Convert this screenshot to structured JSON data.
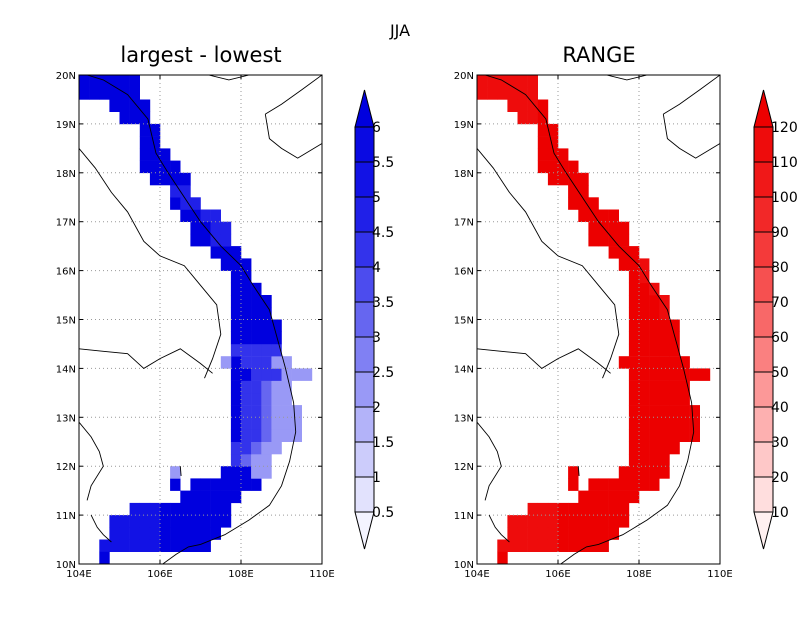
{
  "figure": {
    "title": "JJA"
  },
  "chart_data": [
    {
      "type": "heatmap",
      "title": "largest - lowest",
      "region": {
        "lon": [
          104,
          110
        ],
        "lat": [
          10,
          20
        ]
      },
      "x_ticks": [
        "104E",
        "106E",
        "108E",
        "110E"
      ],
      "y_ticks": [
        "10N",
        "11N",
        "12N",
        "13N",
        "14N",
        "15N",
        "16N",
        "17N",
        "18N",
        "19N",
        "20N"
      ],
      "grid": true,
      "colorbar": {
        "levels": [
          "0.5",
          "1",
          "1.5",
          "2",
          "2.5",
          "3",
          "3.5",
          "4",
          "4.5",
          "5",
          "5.5",
          "6"
        ],
        "extend": "both",
        "colors": [
          "#f4f4ff",
          "#e2e2fd",
          "#ccccfb",
          "#b3b3f9",
          "#9999f6",
          "#8080f3",
          "#6666f0",
          "#4c4cee",
          "#3333eb",
          "#2020e8",
          "#1212e5",
          "#0a0ae2",
          "#0000de"
        ]
      },
      "field_value": "mostly 5.5 to 6 over land; 2 to 4 along the south-central coast"
    },
    {
      "type": "heatmap",
      "title": "RANGE",
      "region": {
        "lon": [
          104,
          110
        ],
        "lat": [
          10,
          20
        ]
      },
      "x_ticks": [
        "104E",
        "106E",
        "108E",
        "110E"
      ],
      "y_ticks": [
        "10N",
        "11N",
        "12N",
        "13N",
        "14N",
        "15N",
        "16N",
        "17N",
        "18N",
        "19N",
        "20N"
      ],
      "grid": true,
      "colorbar": {
        "levels": [
          "10",
          "20",
          "30",
          "40",
          "50",
          "60",
          "70",
          "80",
          "90",
          "100",
          "110",
          "120"
        ],
        "extend": "both",
        "colors": [
          "#fff0f0",
          "#ffdede",
          "#fec8c8",
          "#fdb0b0",
          "#fc9898",
          "#fa8080",
          "#f86868",
          "#f65050",
          "#f43a3a",
          "#f22828",
          "#f01818",
          "#ee0c0c",
          "#ec0000"
        ]
      },
      "field_value": "mostly 110 to 120 over land"
    }
  ]
}
